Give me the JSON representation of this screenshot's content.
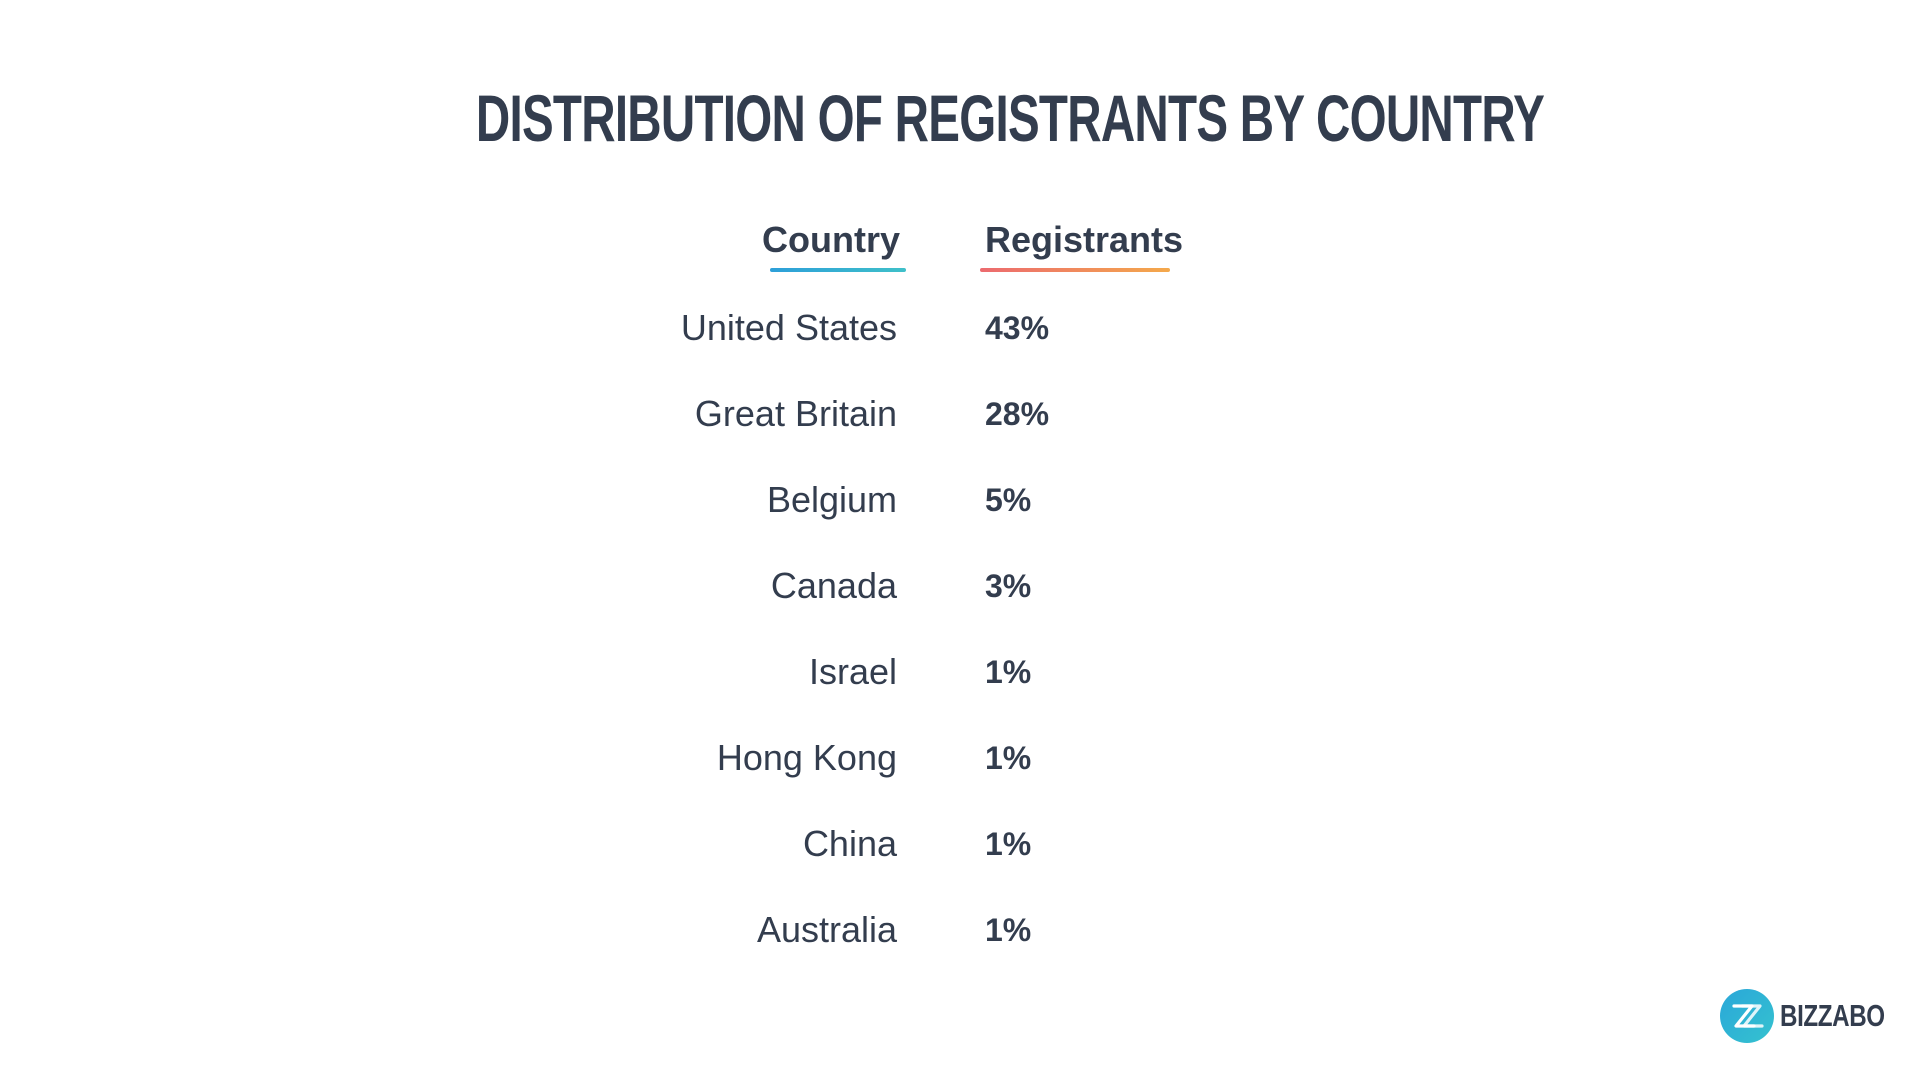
{
  "title": "DISTRIBUTION OF REGISTRANTS BY COUNTRY",
  "table": {
    "headers": {
      "country": "Country",
      "registrants": "Registrants"
    },
    "rows": [
      {
        "country": "United States",
        "registrants": "43%"
      },
      {
        "country": "Great Britain",
        "registrants": "28%"
      },
      {
        "country": "Belgium",
        "registrants": "5%"
      },
      {
        "country": "Canada",
        "registrants": "3%"
      },
      {
        "country": "Israel",
        "registrants": "1%"
      },
      {
        "country": "Hong Kong",
        "registrants": "1%"
      },
      {
        "country": "China",
        "registrants": "1%"
      },
      {
        "country": "Australia",
        "registrants": "1%"
      }
    ]
  },
  "chart_data": {
    "type": "table",
    "title": "DISTRIBUTION OF REGISTRANTS BY COUNTRY",
    "columns": [
      "Country",
      "Registrants"
    ],
    "categories": [
      "United States",
      "Great Britain",
      "Belgium",
      "Canada",
      "Israel",
      "Hong Kong",
      "China",
      "Australia"
    ],
    "values": [
      43,
      28,
      5,
      3,
      1,
      1,
      1,
      1
    ]
  },
  "logo": {
    "text": "BIZZABO",
    "icon": "bizzabo-z-logo-icon"
  },
  "colors": {
    "text": "#333d4e",
    "country_underline": [
      "#2d9fd9",
      "#3fc0c9"
    ],
    "registrants_underline": [
      "#ec6a6f",
      "#f4a94b"
    ],
    "logo_mark": [
      "#2aa7d9",
      "#35c2cf"
    ]
  }
}
